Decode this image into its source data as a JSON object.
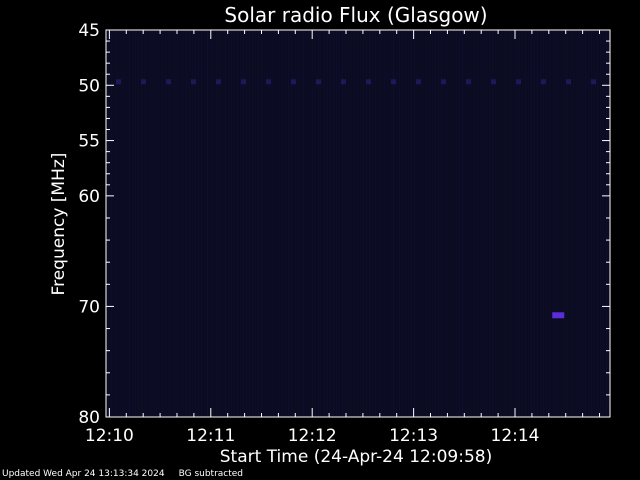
{
  "chart_data": {
    "type": "heatmap",
    "title": "Solar radio Flux (Glasgow)",
    "xlabel": "Start Time (24-Apr-24 12:09:58)",
    "ylabel": "Frequency [MHz]",
    "x_ticks": [
      "12:10",
      "12:11",
      "12:12",
      "12:13",
      "12:14"
    ],
    "y_ticks": [
      45,
      50,
      55,
      60,
      70,
      80
    ],
    "x_range_minutes": [
      0,
      4.97
    ],
    "y_range_mhz": [
      45,
      80
    ],
    "background_color": "#0b0b22",
    "line_50mhz_color": "#1e1e66",
    "features": [
      {
        "time_min": 4.45,
        "freq_mhz": 70.8,
        "color": "#5a2dd8"
      }
    ]
  },
  "footer": {
    "updated": "Updated Wed Apr 24 13:13:34 2024",
    "note": "BG subtracted"
  }
}
